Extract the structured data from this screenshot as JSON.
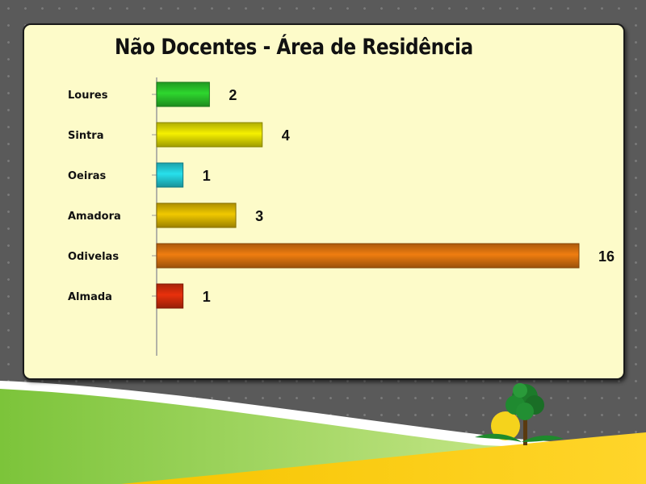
{
  "chart_data": {
    "type": "bar",
    "orientation": "horizontal",
    "title": "Não Docentes - Área de Residência",
    "categories": [
      "Loures",
      "Sintra",
      "Oeiras",
      "Amadora",
      "Odivelas",
      "Almada"
    ],
    "values": [
      2,
      4,
      1,
      3,
      16,
      1
    ],
    "colors": [
      "#2ed62e",
      "#f5f000",
      "#27e0ec",
      "#f0c800",
      "#ef7d10",
      "#e8300c"
    ],
    "data_labels": true,
    "grid": false,
    "legend": "none",
    "xlim": [
      0,
      16
    ]
  }
}
